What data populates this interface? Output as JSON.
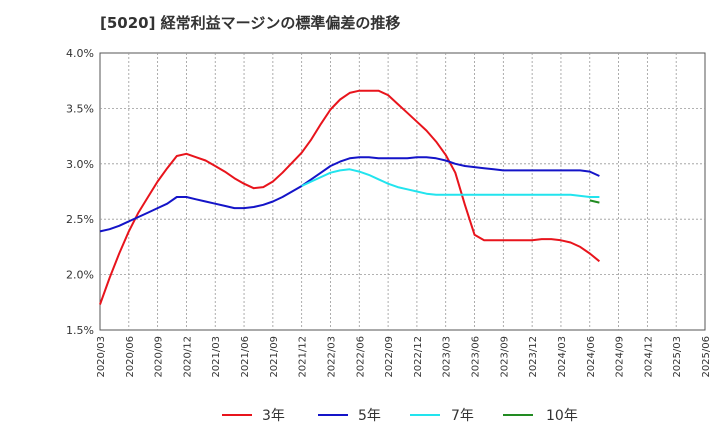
{
  "title": "[5020]  経常利益マージンの標準偏差の推移",
  "chart_data": {
    "type": "line",
    "y_tick_labels": [
      "4.0%",
      "3.5%",
      "3.0%",
      "2.5%",
      "2.0%",
      "1.5%"
    ],
    "ylim": [
      1.5,
      4.0
    ],
    "x_tick_labels": [
      "2020/03",
      "2020/06",
      "2020/09",
      "2020/12",
      "2021/03",
      "2021/06",
      "2021/09",
      "2021/12",
      "2022/03",
      "2022/06",
      "2022/09",
      "2022/12",
      "2023/03",
      "2023/06",
      "2023/09",
      "2023/12",
      "2024/03",
      "2024/06",
      "2024/09",
      "2024/12",
      "2025/03",
      "2025/06"
    ],
    "grid": true,
    "legend_position": "bottom",
    "series": [
      {
        "name": "3年",
        "color": "#e8141c",
        "start_index": 0,
        "values": [
          1.73,
          1.97,
          2.19,
          2.39,
          2.56,
          2.7,
          2.84,
          2.96,
          3.07,
          3.09,
          3.06,
          3.03,
          2.98,
          2.93,
          2.87,
          2.82,
          2.78,
          2.79,
          2.84,
          2.92,
          3.01,
          3.1,
          3.22,
          3.36,
          3.49,
          3.58,
          3.64,
          3.66,
          3.66,
          3.66,
          3.62,
          3.54,
          3.46,
          3.38,
          3.3,
          3.2,
          3.08,
          2.92,
          2.63,
          2.36,
          2.31,
          2.31,
          2.31,
          2.31,
          2.31,
          2.31,
          2.32,
          2.32,
          2.31,
          2.29,
          2.25,
          2.19,
          2.12
        ]
      },
      {
        "name": "5年",
        "color": "#1414c8",
        "start_index": 0,
        "values": [
          2.39,
          2.41,
          2.44,
          2.48,
          2.52,
          2.56,
          2.6,
          2.64,
          2.7,
          2.7,
          2.68,
          2.66,
          2.64,
          2.62,
          2.6,
          2.6,
          2.61,
          2.63,
          2.66,
          2.7,
          2.75,
          2.8,
          2.86,
          2.92,
          2.98,
          3.02,
          3.05,
          3.06,
          3.06,
          3.05,
          3.05,
          3.05,
          3.05,
          3.06,
          3.06,
          3.05,
          3.03,
          3.0,
          2.98,
          2.97,
          2.96,
          2.95,
          2.94,
          2.94,
          2.94,
          2.94,
          2.94,
          2.94,
          2.94,
          2.94,
          2.94,
          2.93,
          2.89
        ]
      },
      {
        "name": "7年",
        "color": "#22e4ee",
        "start_index": 21,
        "values": [
          2.8,
          2.84,
          2.88,
          2.92,
          2.94,
          2.95,
          2.93,
          2.9,
          2.86,
          2.82,
          2.79,
          2.77,
          2.75,
          2.73,
          2.72,
          2.72,
          2.72,
          2.72,
          2.72,
          2.72,
          2.72,
          2.72,
          2.72,
          2.72,
          2.72,
          2.72,
          2.72,
          2.72,
          2.72,
          2.71,
          2.7,
          2.7
        ]
      },
      {
        "name": "10年",
        "color": "#228b22",
        "start_index": 51,
        "values": [
          2.67,
          2.65
        ]
      }
    ]
  }
}
